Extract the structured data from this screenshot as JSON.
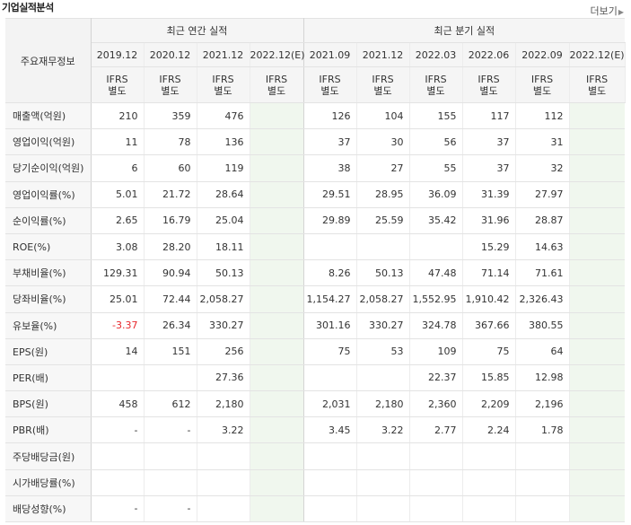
{
  "title": "기업실적분석",
  "more_label": "더보기",
  "header": {
    "item_label": "주요재무정보",
    "annual_label": "최근 연간 실적",
    "quarter_label": "최근 분기 실적",
    "annual_periods": [
      "2019.12",
      "2020.12",
      "2021.12",
      "2022.12(E)"
    ],
    "quarter_periods": [
      "2021.09",
      "2021.12",
      "2022.03",
      "2022.06",
      "2022.09",
      "2022.12(E)"
    ],
    "ifrs_line1": "IFRS",
    "ifrs_line2": "별도"
  },
  "rows": [
    {
      "label": "매출액(억원)",
      "annual": [
        "210",
        "359",
        "476",
        ""
      ],
      "quarter": [
        "126",
        "104",
        "155",
        "117",
        "112",
        ""
      ]
    },
    {
      "label": "영업이익(억원)",
      "annual": [
        "11",
        "78",
        "136",
        ""
      ],
      "quarter": [
        "37",
        "30",
        "56",
        "37",
        "31",
        ""
      ]
    },
    {
      "label": "당기순이익(억원)",
      "annual": [
        "6",
        "60",
        "119",
        ""
      ],
      "quarter": [
        "38",
        "27",
        "55",
        "37",
        "32",
        ""
      ]
    },
    {
      "label": "영업이익률(%)",
      "annual": [
        "5.01",
        "21.72",
        "28.64",
        ""
      ],
      "quarter": [
        "29.51",
        "28.95",
        "36.09",
        "31.39",
        "27.97",
        ""
      ]
    },
    {
      "label": "순이익률(%)",
      "annual": [
        "2.65",
        "16.79",
        "25.04",
        ""
      ],
      "quarter": [
        "29.89",
        "25.59",
        "35.42",
        "31.96",
        "28.87",
        ""
      ]
    },
    {
      "label": "ROE(%)",
      "annual": [
        "3.08",
        "28.20",
        "18.11",
        ""
      ],
      "quarter": [
        "",
        "",
        "",
        "15.29",
        "14.63",
        ""
      ]
    },
    {
      "label": "부채비율(%)",
      "annual": [
        "129.31",
        "90.94",
        "50.13",
        ""
      ],
      "quarter": [
        "8.26",
        "50.13",
        "47.48",
        "71.14",
        "71.61",
        ""
      ]
    },
    {
      "label": "당좌비율(%)",
      "annual": [
        "25.01",
        "72.44",
        "2,058.27",
        ""
      ],
      "quarter": [
        "1,154.27",
        "2,058.27",
        "1,552.95",
        "1,910.42",
        "2,326.43",
        ""
      ]
    },
    {
      "label": "유보율(%)",
      "annual": [
        "-3.37",
        "26.34",
        "330.27",
        ""
      ],
      "quarter": [
        "301.16",
        "330.27",
        "324.78",
        "367.66",
        "380.55",
        ""
      ]
    },
    {
      "label": "EPS(원)",
      "annual": [
        "14",
        "151",
        "256",
        ""
      ],
      "quarter": [
        "75",
        "53",
        "109",
        "75",
        "64",
        ""
      ]
    },
    {
      "label": "PER(배)",
      "annual": [
        "",
        "",
        "27.36",
        ""
      ],
      "quarter": [
        "",
        "",
        "22.37",
        "15.85",
        "12.98",
        ""
      ]
    },
    {
      "label": "BPS(원)",
      "annual": [
        "458",
        "612",
        "2,180",
        ""
      ],
      "quarter": [
        "2,031",
        "2,180",
        "2,360",
        "2,209",
        "2,196",
        ""
      ]
    },
    {
      "label": "PBR(배)",
      "annual": [
        "-",
        "-",
        "3.22",
        ""
      ],
      "quarter": [
        "3.45",
        "3.22",
        "2.77",
        "2.24",
        "1.78",
        ""
      ]
    },
    {
      "label": "주당배당금(원)",
      "annual": [
        "",
        "",
        "",
        ""
      ],
      "quarter": [
        "",
        "",
        "",
        "",
        "",
        ""
      ]
    },
    {
      "label": "시가배당률(%)",
      "annual": [
        "",
        "",
        "",
        ""
      ],
      "quarter": [
        "",
        "",
        "",
        "",
        "",
        ""
      ]
    },
    {
      "label": "배당성향(%)",
      "annual": [
        "-",
        "-",
        "",
        ""
      ],
      "quarter": [
        "",
        "",
        "",
        "",
        "",
        ""
      ]
    }
  ],
  "group_starts": [
    0,
    3,
    9,
    13
  ]
}
